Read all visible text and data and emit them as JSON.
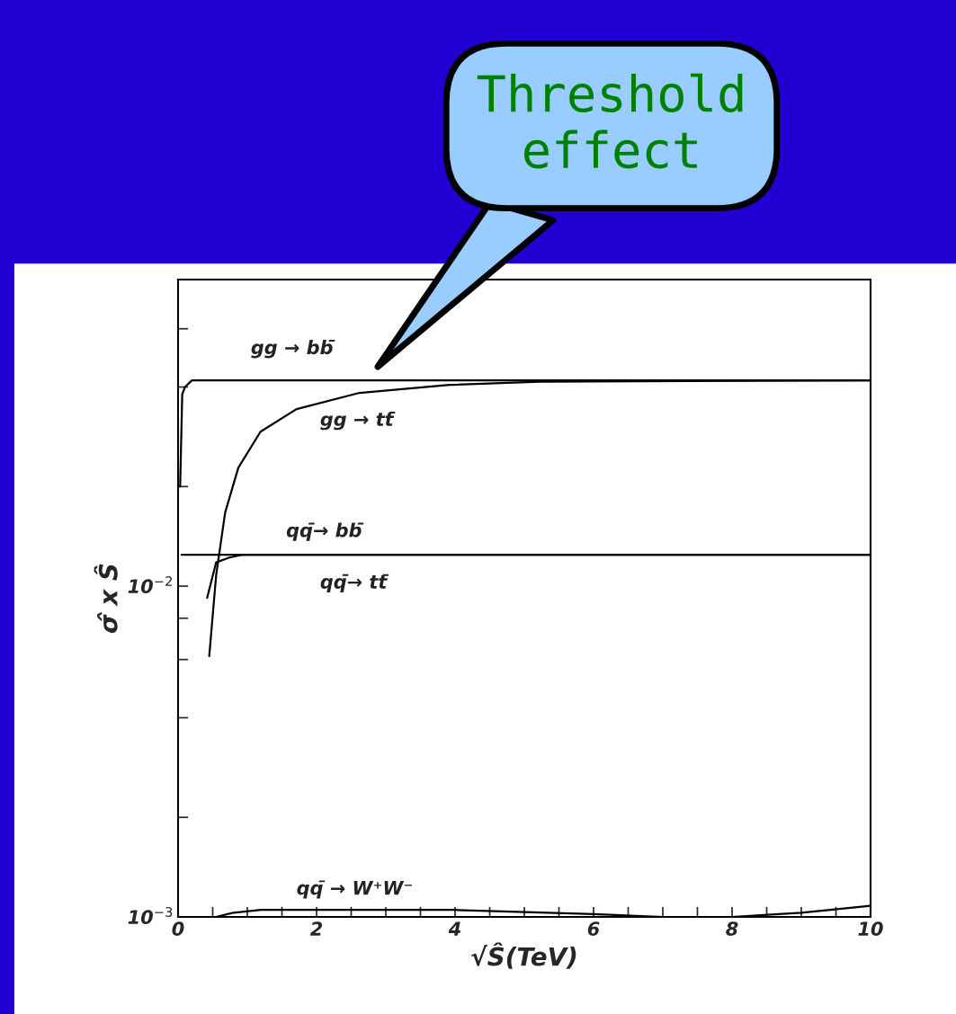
{
  "chart_data": {
    "type": "line",
    "xlabel": "√Ŝ(TeV)",
    "ylabel": "σ̂ x Ŝ",
    "log": "y",
    "xlim": [
      0,
      10
    ],
    "xticks": [
      0,
      {
        "value": 0.5,
        "label": null
      },
      {
        "value": 1,
        "label": null
      },
      {
        "value": 1.5,
        "label": null
      },
      2,
      {
        "value": 2.5,
        "label": null
      },
      {
        "value": 3,
        "label": null
      },
      {
        "value": 3.5,
        "label": null
      },
      4,
      {
        "value": 4.5,
        "label": null
      },
      {
        "value": 5,
        "label": null
      },
      {
        "value": 5.5,
        "label": null
      },
      6,
      {
        "value": 6.5,
        "label": null
      },
      {
        "value": 7,
        "label": null
      },
      {
        "value": 7.5,
        "label": null
      },
      8,
      {
        "value": 8.5,
        "label": null
      },
      {
        "value": 9,
        "label": null
      },
      {
        "value": 9.5,
        "label": null
      },
      10
    ],
    "ylim": [
      0.001,
      0.0845
    ],
    "yticks": [
      {
        "value": 0.001,
        "label": "10$^{−3}$"
      },
      {
        "value": 0.002,
        "label": null
      },
      {
        "value": 0.004,
        "label": null
      },
      {
        "value": 0.006,
        "label": null
      },
      {
        "value": 0.008,
        "label": null
      },
      {
        "value": 0.01,
        "label": "10$^{−2}$"
      },
      {
        "value": 0.02,
        "label": null
      },
      {
        "value": 0.04,
        "label": null
      },
      {
        "value": 0.06,
        "label": null
      }
    ],
    "grid": false,
    "legend": false,
    "marker": "none",
    "line_style": "solid",
    "series": [
      {
        "name": "gg → bb̄",
        "color": "#000000",
        "x": [
          0.03,
          0.06,
          0.1,
          0.2,
          10
        ],
        "values": [
          0.02,
          0.038,
          0.04,
          0.0419,
          0.0419
        ]
      },
      {
        "name": "gg → tt̄",
        "color": "#000000",
        "x": [
          0.45,
          0.55,
          0.68,
          0.87,
          1.19,
          1.71,
          2.62,
          3.92,
          5.22,
          10
        ],
        "values": [
          0.00614,
          0.0108,
          0.0167,
          0.0228,
          0.0293,
          0.0343,
          0.0384,
          0.0406,
          0.0415,
          0.0419
        ]
      },
      {
        "name": "qq̄→ bb̄",
        "color": "#000000",
        "x": [
          0.05,
          10
        ],
        "values": [
          0.01245,
          0.01245
        ]
      },
      {
        "name": "qq̄→ tt̄",
        "color": "#000000",
        "x": [
          0.42,
          0.55,
          0.74,
          0.94,
          10
        ],
        "values": [
          0.00922,
          0.0118,
          0.0122,
          0.01245,
          0.01245
        ]
      },
      {
        "name": "qq̄ → W⁺W⁻",
        "color": "#000000",
        "x": [
          0.55,
          0.8,
          1.2,
          4,
          6,
          7,
          8,
          9,
          10
        ],
        "values": [
          0.001,
          0.00103,
          0.00105,
          0.00105,
          0.00102,
          0.001,
          0.001,
          0.00103,
          0.00108
        ]
      }
    ],
    "annotations": [
      "Threshold\neffect"
    ]
  }
}
